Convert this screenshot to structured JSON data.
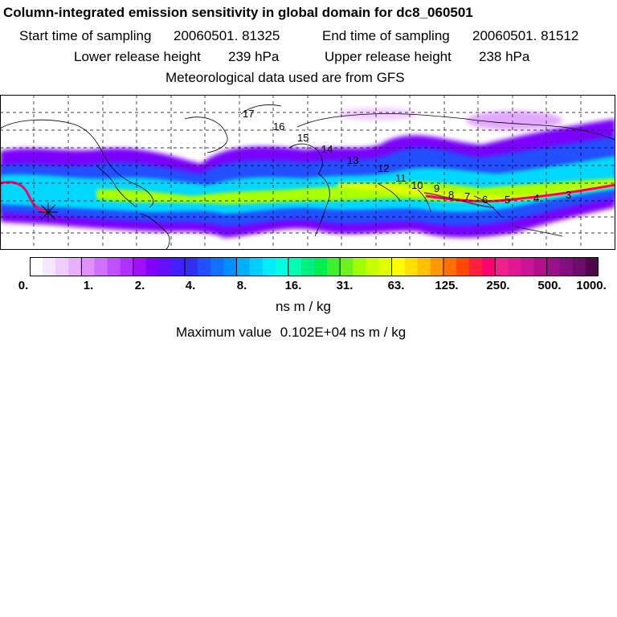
{
  "header": {
    "title": "Column-integrated emission sensitivity in global domain for dc8_060501",
    "start_label": "Start time of sampling",
    "start_value": "20060501. 81325",
    "end_label": "End time of sampling",
    "end_value": "20060501. 81512",
    "lower_label": "Lower release height",
    "lower_value": "239 hPa",
    "upper_label": "Upper release height",
    "upper_value": "238 hPa",
    "met_line": "Meteorological data used are from GFS"
  },
  "map": {
    "day_labels": [
      "17",
      "16",
      "15",
      "14",
      "13",
      "12",
      "11",
      "10",
      "9",
      "8",
      "7",
      "6",
      "5",
      "4",
      "3"
    ],
    "colors": {
      "plume_outer": "#7b00ff",
      "plume_mid": "#00d8ff",
      "plume_core": "#aaff00",
      "track_core": "#ff0066",
      "coast": "#000000",
      "grid": "#000000"
    }
  },
  "colorbar": {
    "tick_labels": [
      "0.",
      "1.",
      "2.",
      "4.",
      "8.",
      "16.",
      "31.",
      "63.",
      "125.",
      "250.",
      "500.",
      "1000."
    ],
    "colors": [
      "#ffffff",
      "#f6e6ff",
      "#f0ccff",
      "#e8b0ff",
      "#e090ff",
      "#d070ff",
      "#c050ff",
      "#b030ff",
      "#a010ff",
      "#8000ff",
      "#6010ff",
      "#4020ff",
      "#3030ee",
      "#2050ff",
      "#1070ff",
      "#0090ff",
      "#00b0ff",
      "#00d0ff",
      "#00eeff",
      "#00ffe0",
      "#00ffb0",
      "#00f080",
      "#00ee50",
      "#40f030",
      "#70f020",
      "#a0ff00",
      "#c8ff00",
      "#e0ff00",
      "#ffff00",
      "#ffe000",
      "#ffc000",
      "#ff9800",
      "#ff7000",
      "#ff4800",
      "#ff2040",
      "#ff0070",
      "#f0208c",
      "#e01894",
      "#c81496",
      "#b0108c",
      "#98108a",
      "#801080",
      "#6c0c6c",
      "#4c0848"
    ],
    "unit_label": "ns m / kg",
    "maximum_label": "Maximum value",
    "maximum_value": "0.102E+04",
    "maximum_unit": "ns m / kg"
  }
}
